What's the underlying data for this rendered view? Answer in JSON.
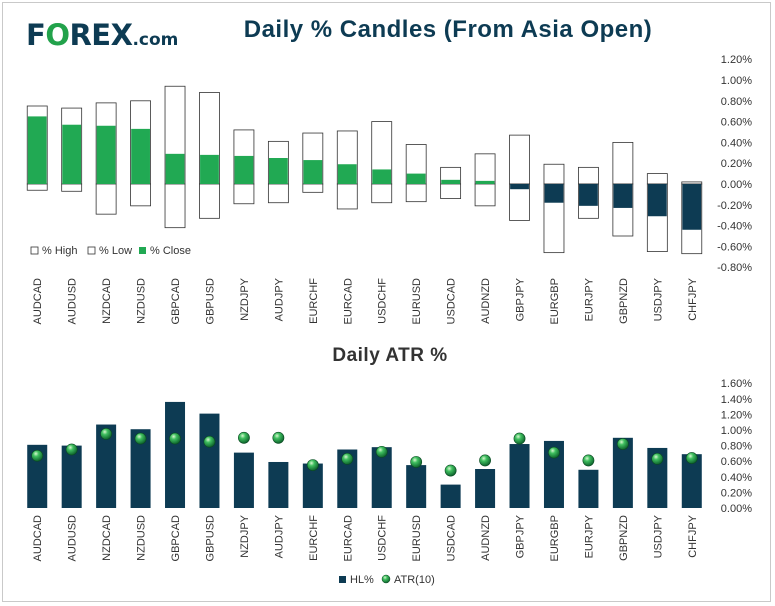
{
  "logo": {
    "text_f": "F",
    "text_o": "O",
    "text_rex": "REX",
    "text_com": ".com"
  },
  "chart_data": [
    {
      "type": "bar",
      "title": "Daily % Candles (From Asia Open)",
      "categories": [
        "AUDCAD",
        "AUDUSD",
        "NZDCAD",
        "NZDUSD",
        "GBPCAD",
        "GBPUSD",
        "NZDJPY",
        "AUDJPY",
        "EURCHF",
        "EURCAD",
        "USDCHF",
        "EURUSD",
        "USDCAD",
        "AUDNZD",
        "GBPJPY",
        "EURGBP",
        "EURJPY",
        "GBPNZD",
        "USDJPY",
        "CHFJPY"
      ],
      "series": [
        {
          "name": "% High",
          "values": [
            0.75,
            0.73,
            0.78,
            0.8,
            0.94,
            0.88,
            0.52,
            0.41,
            0.49,
            0.51,
            0.6,
            0.38,
            0.16,
            0.29,
            0.47,
            0.19,
            0.16,
            0.4,
            0.1,
            0.02
          ]
        },
        {
          "name": "% Low",
          "values": [
            -0.06,
            -0.07,
            -0.29,
            -0.21,
            -0.42,
            -0.33,
            -0.19,
            -0.18,
            -0.08,
            -0.24,
            -0.18,
            -0.17,
            -0.14,
            -0.21,
            -0.35,
            -0.66,
            -0.33,
            -0.5,
            -0.65,
            -0.67
          ]
        },
        {
          "name": "% Close",
          "values": [
            0.65,
            0.57,
            0.56,
            0.53,
            0.29,
            0.28,
            0.27,
            0.25,
            0.23,
            0.19,
            0.14,
            0.1,
            0.04,
            0.03,
            -0.05,
            -0.18,
            -0.21,
            -0.23,
            -0.31,
            -0.44
          ]
        }
      ],
      "ylim": [
        -0.8,
        1.2
      ],
      "yticks": [
        "1.20%",
        "1.00%",
        "0.80%",
        "0.60%",
        "0.40%",
        "0.20%",
        "0.00%",
        "-0.20%",
        "-0.40%",
        "-0.60%",
        "-0.80%"
      ],
      "legend": [
        "% High",
        "% Low",
        "% Close"
      ],
      "legend_position": "bottom-left",
      "colors": {
        "close_up": "#21a953",
        "close_down": "#0d3b53",
        "range_outline": "#333333"
      }
    },
    {
      "type": "bar",
      "title": "Daily ATR %",
      "categories": [
        "AUDCAD",
        "AUDUSD",
        "NZDCAD",
        "NZDUSD",
        "GBPCAD",
        "GBPUSD",
        "NZDJPY",
        "AUDJPY",
        "EURCHF",
        "EURCAD",
        "USDCHF",
        "EURUSD",
        "USDCAD",
        "AUDNZD",
        "GBPJPY",
        "EURGBP",
        "EURJPY",
        "GBPNZD",
        "USDJPY",
        "CHFJPY"
      ],
      "series": [
        {
          "name": "HL%",
          "values": [
            0.81,
            0.8,
            1.07,
            1.01,
            1.36,
            1.21,
            0.71,
            0.59,
            0.57,
            0.75,
            0.78,
            0.55,
            0.3,
            0.5,
            0.82,
            0.86,
            0.49,
            0.9,
            0.77,
            0.69
          ]
        },
        {
          "name": "ATR(10)",
          "values": [
            0.67,
            0.75,
            0.95,
            0.89,
            0.89,
            0.85,
            0.9,
            0.9,
            0.55,
            0.63,
            0.72,
            0.59,
            0.48,
            0.61,
            0.89,
            0.71,
            0.61,
            0.82,
            0.63,
            0.64
          ]
        }
      ],
      "ylim": [
        0,
        1.6
      ],
      "yticks": [
        "1.60%",
        "1.40%",
        "1.20%",
        "1.00%",
        "0.80%",
        "0.60%",
        "0.40%",
        "0.20%",
        "0.00%"
      ],
      "legend": [
        "HL%",
        "ATR(10)"
      ],
      "legend_position": "bottom-center",
      "colors": {
        "bar": "#0d3b53",
        "marker": "#21a953"
      }
    }
  ]
}
